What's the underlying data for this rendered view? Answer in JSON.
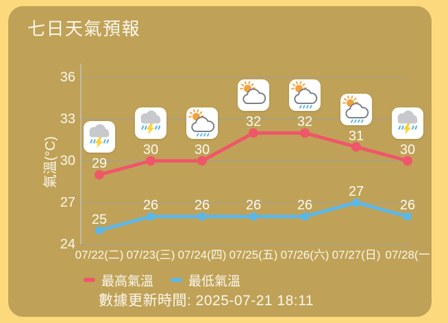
{
  "title": "七日天氣預報",
  "chart_data": {
    "type": "line",
    "categories": [
      "07/22(二)",
      "07/23(三)",
      "07/24(四)",
      "07/25(五)",
      "07/26(六)",
      "07/27(日)",
      "07/28(一"
    ],
    "series": [
      {
        "name": "最高氣溫",
        "color": "#f0566a",
        "values": [
          29,
          30,
          30,
          32,
          32,
          31,
          30
        ]
      },
      {
        "name": "最低氣溫",
        "color": "#5cb7e9",
        "values": [
          25,
          26,
          26,
          26,
          26,
          27,
          26
        ]
      }
    ],
    "icons": [
      "thunderstorm",
      "thunderstorm",
      "sun-cloud-rain",
      "sun-cloud",
      "sun-cloud-rain",
      "sun-cloud-rain",
      "thunderstorm"
    ],
    "ylabel": "氣溫(°C)",
    "yticks": [
      36,
      33,
      30,
      27,
      24
    ],
    "ylim": [
      24,
      36
    ],
    "grid": true,
    "legend_position": "bottom"
  },
  "footer": {
    "updated_text": "數據更新時間: 2025-07-21 18:11"
  },
  "colors": {
    "page_bg": "#fcd97d",
    "card_bg": "#bfa257",
    "text": "#fbf7ec",
    "grid": "#a89f85",
    "axis": "#c2bba6",
    "icon_bg": "#ffffff",
    "sun": "#f2a23c",
    "cloud_fill": "#c7c9cc",
    "cloud_outline": "#7a7f85",
    "rain": "#58b4e8",
    "bolt": "#fcd232"
  }
}
